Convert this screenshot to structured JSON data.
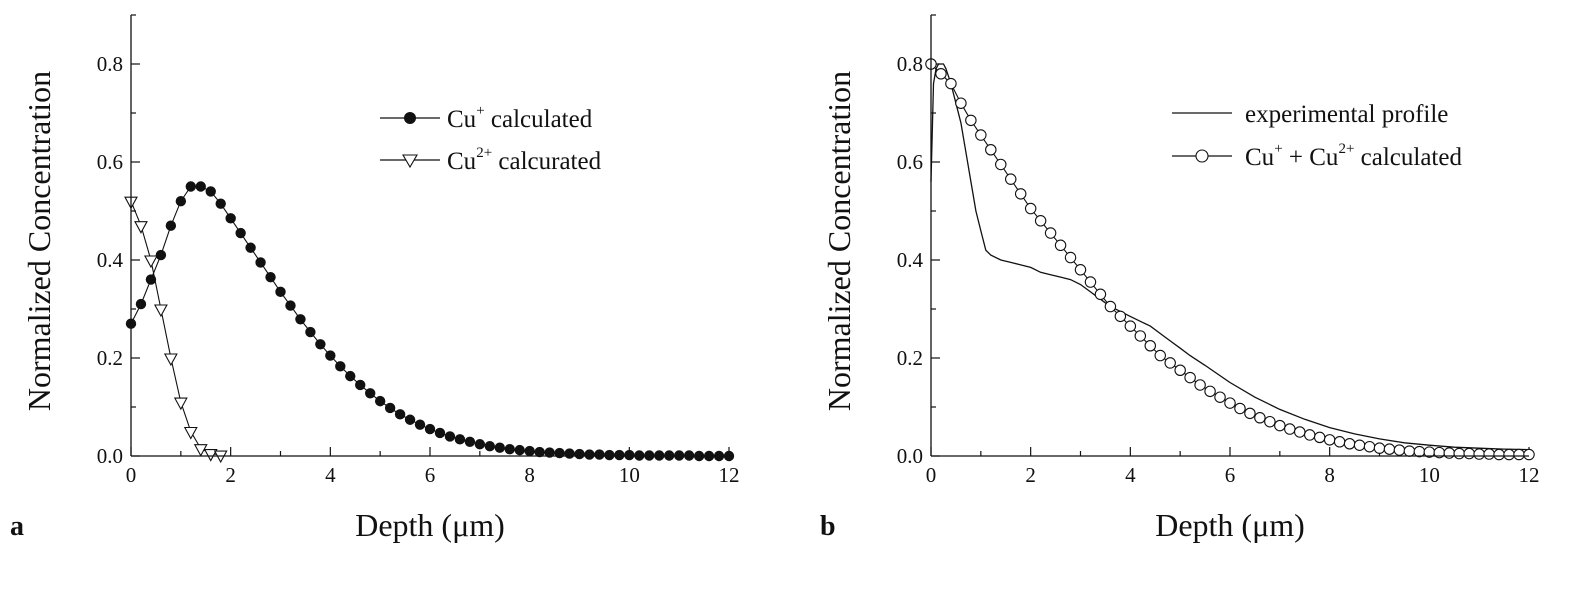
{
  "figure": {
    "panels": [
      {
        "id": "a",
        "panel_label": "a",
        "chart_data": {
          "type": "line",
          "xlabel": "Depth (μm)",
          "ylabel": "Normalized Concentration",
          "xlim": [
            0,
            12
          ],
          "ylim": [
            0,
            0.9
          ],
          "x_ticks": [
            0,
            2,
            4,
            6,
            8,
            10,
            12
          ],
          "x_tick_labels": [
            "0",
            "2",
            "4",
            "6",
            "8",
            "10",
            "12"
          ],
          "y_ticks": [
            0,
            0.2,
            0.4,
            0.6,
            0.8
          ],
          "y_tick_labels": [
            "0.0",
            "0.2",
            "0.4",
            "0.6",
            "0.8"
          ],
          "grid": false,
          "legend_position": "top-right",
          "series": [
            {
              "name": "Cu+ calculated",
              "legend_base": "Cu",
              "legend_sup": "+",
              "legend_tail": " calculated",
              "marker": "filled-circle",
              "x": [
                0,
                0.2,
                0.4,
                0.6,
                0.8,
                1.0,
                1.2,
                1.4,
                1.6,
                1.8,
                2.0,
                2.2,
                2.4,
                2.6,
                2.8,
                3.0,
                3.2,
                3.4,
                3.6,
                3.8,
                4.0,
                4.2,
                4.4,
                4.6,
                4.8,
                5.0,
                5.2,
                5.4,
                5.6,
                5.8,
                6.0,
                6.2,
                6.4,
                6.6,
                6.8,
                7.0,
                7.2,
                7.4,
                7.6,
                7.8,
                8.0,
                8.2,
                8.4,
                8.6,
                8.8,
                9.0,
                9.2,
                9.4,
                9.6,
                9.8,
                10.0,
                10.2,
                10.4,
                10.6,
                10.8,
                11.0,
                11.2,
                11.4,
                11.6,
                11.8,
                12.0
              ],
              "y": [
                0.27,
                0.31,
                0.36,
                0.41,
                0.47,
                0.52,
                0.55,
                0.55,
                0.54,
                0.515,
                0.485,
                0.455,
                0.425,
                0.395,
                0.365,
                0.335,
                0.307,
                0.279,
                0.253,
                0.228,
                0.205,
                0.183,
                0.163,
                0.145,
                0.128,
                0.112,
                0.098,
                0.085,
                0.074,
                0.064,
                0.055,
                0.047,
                0.04,
                0.034,
                0.029,
                0.024,
                0.02,
                0.017,
                0.014,
                0.012,
                0.01,
                0.008,
                0.007,
                0.006,
                0.005,
                0.004,
                0.003,
                0.003,
                0.002,
                0.002,
                0.002,
                0.001,
                0.001,
                0.001,
                0.001,
                0.001,
                0.001,
                0.0,
                0.0,
                0.0,
                0.0
              ]
            },
            {
              "name": "Cu2+ calcurated",
              "legend_base": "Cu",
              "legend_sup": "2+",
              "legend_tail": " calcurated",
              "marker": "open-triangle-down",
              "x": [
                0,
                0.2,
                0.4,
                0.6,
                0.8,
                1.0,
                1.2,
                1.4,
                1.6,
                1.8
              ],
              "y": [
                0.52,
                0.47,
                0.4,
                0.3,
                0.2,
                0.11,
                0.05,
                0.015,
                0.005,
                0.002
              ]
            }
          ]
        }
      },
      {
        "id": "b",
        "panel_label": "b",
        "chart_data": {
          "type": "line",
          "xlabel": "Depth (μm)",
          "ylabel": "Normalized Concentration",
          "xlim": [
            0,
            12
          ],
          "ylim": [
            0,
            0.9
          ],
          "x_ticks": [
            0,
            2,
            4,
            6,
            8,
            10,
            12
          ],
          "x_tick_labels": [
            "0",
            "2",
            "4",
            "6",
            "8",
            "10",
            "12"
          ],
          "y_ticks": [
            0,
            0.2,
            0.4,
            0.6,
            0.8
          ],
          "y_tick_labels": [
            "0.0",
            "0.2",
            "0.4",
            "0.6",
            "0.8"
          ],
          "grid": false,
          "legend_position": "top-right",
          "series": [
            {
              "name": "experimental profile",
              "legend_text": "experimental profile",
              "marker": "none",
              "x": [
                0,
                0.05,
                0.1,
                0.15,
                0.2,
                0.25,
                0.3,
                0.4,
                0.5,
                0.6,
                0.7,
                0.8,
                0.9,
                1.0,
                1.05,
                1.1,
                1.2,
                1.4,
                1.6,
                1.8,
                2.0,
                2.2,
                2.4,
                2.6,
                2.8,
                3.0,
                3.2,
                3.4,
                3.6,
                3.8,
                4.0,
                4.2,
                4.4,
                4.6,
                4.8,
                5.0,
                5.2,
                5.5,
                6.0,
                6.5,
                7.0,
                7.5,
                8.0,
                8.5,
                9.0,
                9.5,
                10.0,
                10.5,
                11.0,
                11.5,
                12.0
              ],
              "y": [
                0.56,
                0.76,
                0.79,
                0.8,
                0.8,
                0.8,
                0.79,
                0.76,
                0.72,
                0.68,
                0.62,
                0.56,
                0.5,
                0.46,
                0.44,
                0.42,
                0.41,
                0.4,
                0.395,
                0.39,
                0.385,
                0.375,
                0.37,
                0.365,
                0.36,
                0.35,
                0.335,
                0.32,
                0.305,
                0.295,
                0.285,
                0.275,
                0.265,
                0.25,
                0.235,
                0.22,
                0.205,
                0.185,
                0.15,
                0.12,
                0.095,
                0.075,
                0.058,
                0.045,
                0.035,
                0.027,
                0.022,
                0.018,
                0.016,
                0.014,
                0.013
              ]
            },
            {
              "name": "Cu+ + Cu2+ calculated",
              "legend_a": "Cu",
              "legend_sup_a": "+",
              "legend_mid": " + Cu",
              "legend_sup_b": "2+",
              "legend_tail": " calculated",
              "marker": "open-circle",
              "x": [
                0,
                0.2,
                0.4,
                0.6,
                0.8,
                1.0,
                1.2,
                1.4,
                1.6,
                1.8,
                2.0,
                2.2,
                2.4,
                2.6,
                2.8,
                3.0,
                3.2,
                3.4,
                3.6,
                3.8,
                4.0,
                4.2,
                4.4,
                4.6,
                4.8,
                5.0,
                5.2,
                5.4,
                5.6,
                5.8,
                6.0,
                6.2,
                6.4,
                6.6,
                6.8,
                7.0,
                7.2,
                7.4,
                7.6,
                7.8,
                8.0,
                8.2,
                8.4,
                8.6,
                8.8,
                9.0,
                9.2,
                9.4,
                9.6,
                9.8,
                10.0,
                10.2,
                10.4,
                10.6,
                10.8,
                11.0,
                11.2,
                11.4,
                11.6,
                11.8,
                12.0
              ],
              "y": [
                0.8,
                0.78,
                0.76,
                0.72,
                0.685,
                0.655,
                0.625,
                0.595,
                0.565,
                0.535,
                0.505,
                0.48,
                0.455,
                0.43,
                0.405,
                0.38,
                0.355,
                0.33,
                0.305,
                0.285,
                0.265,
                0.245,
                0.225,
                0.205,
                0.19,
                0.175,
                0.16,
                0.145,
                0.132,
                0.12,
                0.108,
                0.097,
                0.087,
                0.078,
                0.07,
                0.062,
                0.055,
                0.049,
                0.043,
                0.038,
                0.033,
                0.029,
                0.025,
                0.022,
                0.019,
                0.016,
                0.014,
                0.012,
                0.01,
                0.009,
                0.008,
                0.007,
                0.006,
                0.005,
                0.005,
                0.004,
                0.004,
                0.003,
                0.003,
                0.003,
                0.003
              ]
            }
          ]
        }
      }
    ]
  }
}
